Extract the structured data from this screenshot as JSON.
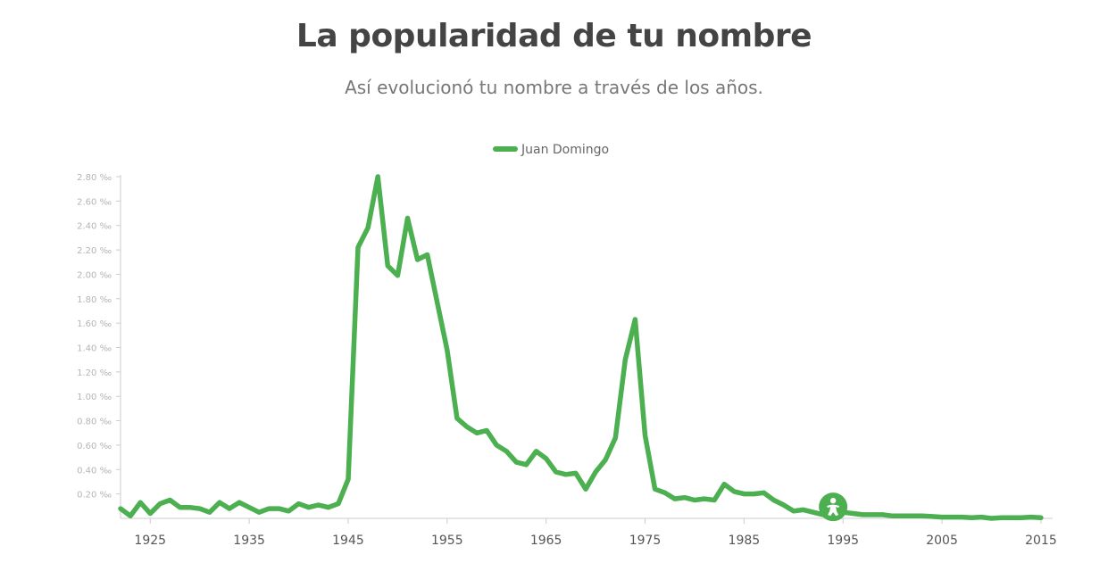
{
  "header": {
    "title": "La popularidad de tu nombre",
    "subtitle": "Así evolucionó tu nombre a través de los años."
  },
  "colors": {
    "series": "#4caf50",
    "axis": "#cccccc",
    "marker_icon": "#ffffff"
  },
  "marker": {
    "icon": "baby-icon",
    "x": 1994,
    "y": 0.05
  },
  "chart_data": {
    "type": "line",
    "title": "",
    "xlabel": "",
    "ylabel": "",
    "xlim": [
      1922,
      2016
    ],
    "ylim": [
      0,
      2.8
    ],
    "y_unit": " ‰",
    "legend_position": "top-center",
    "grid": false,
    "y_ticks": [
      0.2,
      0.4,
      0.6,
      0.8,
      1.0,
      1.2,
      1.4,
      1.6,
      1.8,
      2.0,
      2.2,
      2.4,
      2.6,
      2.8
    ],
    "y_tick_labels": [
      "0.20 ‰",
      "0.40 ‰",
      "0.60 ‰",
      "0.80 ‰",
      "1.00 ‰",
      "1.20 ‰",
      "1.40 ‰",
      "1.60 ‰",
      "1.80 ‰",
      "2.00 ‰",
      "2.20 ‰",
      "2.40 ‰",
      "2.60 ‰",
      "2.80 ‰"
    ],
    "x_ticks": [
      1925,
      1935,
      1945,
      1955,
      1965,
      1975,
      1985,
      1995,
      2005,
      2015
    ],
    "x_tick_labels": [
      "1925",
      "1935",
      "1945",
      "1955",
      "1965",
      "1975",
      "1985",
      "1995",
      "2005",
      "2015"
    ],
    "series": [
      {
        "name": "Juan Domingo",
        "x": [
          1922,
          1923,
          1924,
          1925,
          1926,
          1927,
          1928,
          1929,
          1930,
          1931,
          1932,
          1933,
          1934,
          1935,
          1936,
          1937,
          1938,
          1939,
          1940,
          1941,
          1942,
          1943,
          1944,
          1945,
          1946,
          1947,
          1948,
          1949,
          1950,
          1951,
          1952,
          1953,
          1954,
          1955,
          1956,
          1957,
          1958,
          1959,
          1960,
          1961,
          1962,
          1963,
          1964,
          1965,
          1966,
          1967,
          1968,
          1969,
          1970,
          1971,
          1972,
          1973,
          1974,
          1975,
          1976,
          1977,
          1978,
          1979,
          1980,
          1981,
          1982,
          1983,
          1984,
          1985,
          1986,
          1987,
          1988,
          1989,
          1990,
          1991,
          1992,
          1993,
          1994,
          1995,
          1996,
          1997,
          1998,
          1999,
          2000,
          2001,
          2002,
          2003,
          2004,
          2005,
          2006,
          2007,
          2008,
          2009,
          2010,
          2011,
          2012,
          2013,
          2014,
          2015
        ],
        "values": [
          0.08,
          0.02,
          0.13,
          0.04,
          0.12,
          0.15,
          0.09,
          0.09,
          0.08,
          0.05,
          0.13,
          0.08,
          0.13,
          0.09,
          0.05,
          0.08,
          0.08,
          0.06,
          0.12,
          0.09,
          0.11,
          0.09,
          0.12,
          0.32,
          2.22,
          2.38,
          2.8,
          2.07,
          1.99,
          2.46,
          2.12,
          2.16,
          1.77,
          1.38,
          0.82,
          0.75,
          0.7,
          0.72,
          0.6,
          0.55,
          0.46,
          0.44,
          0.55,
          0.49,
          0.38,
          0.36,
          0.37,
          0.24,
          0.38,
          0.48,
          0.66,
          1.3,
          1.63,
          0.68,
          0.24,
          0.21,
          0.16,
          0.17,
          0.15,
          0.16,
          0.15,
          0.28,
          0.22,
          0.2,
          0.2,
          0.21,
          0.15,
          0.11,
          0.06,
          0.07,
          0.05,
          0.03,
          0.05,
          0.05,
          0.04,
          0.03,
          0.03,
          0.03,
          0.02,
          0.02,
          0.02,
          0.02,
          0.015,
          0.01,
          0.01,
          0.01,
          0.005,
          0.01,
          0.0,
          0.005,
          0.005,
          0.005,
          0.01,
          0.005
        ]
      }
    ]
  }
}
